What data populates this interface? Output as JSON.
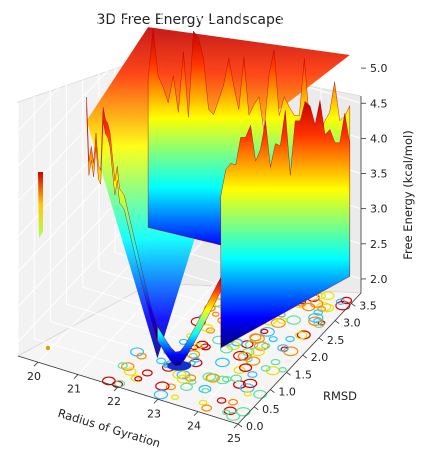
{
  "chart_data": {
    "type": "surface3d",
    "title": "3D Free Energy Landscape",
    "xlabel": "Radius of Gyration",
    "ylabel": "RMSD",
    "zlabel": "Free Energy (kcal/mol)",
    "xlim": [
      19.5,
      25
    ],
    "ylim": [
      0,
      3.8
    ],
    "zlim": [
      1.8,
      5.4
    ],
    "x_ticks": [
      "20",
      "21",
      "22",
      "23",
      "24",
      "25"
    ],
    "y_ticks": [
      "0.0",
      "0.5",
      "1.0",
      "1.5",
      "2.0",
      "2.5",
      "3.0",
      "3.5"
    ],
    "z_ticks": [
      "2.0",
      "2.5",
      "3.0",
      "3.5",
      "4.0",
      "4.5",
      "5.0"
    ],
    "colormap": "jet",
    "grid": true,
    "minimum": {
      "x": 22.8,
      "y": 0.9,
      "z": 1.9
    }
  }
}
